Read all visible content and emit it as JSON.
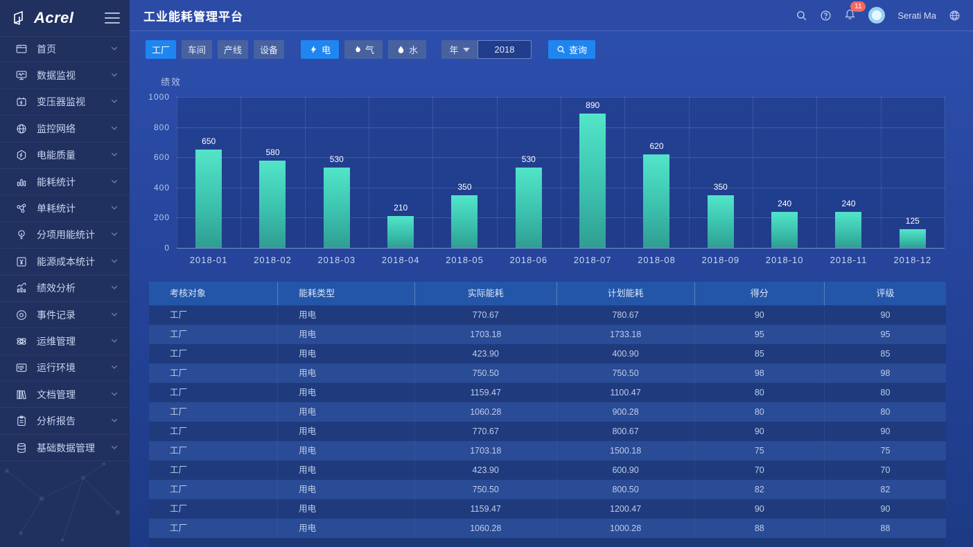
{
  "brand": {
    "logo_text": "Acrel"
  },
  "header": {
    "title": "工业能耗管理平台",
    "notification_count": "11",
    "user_name": "Serati Ma",
    "icons": [
      "search-icon",
      "help-icon",
      "bell-icon",
      "avatar",
      "globe-icon"
    ]
  },
  "sidebar": {
    "items": [
      {
        "label": "首页",
        "icon": "home-icon"
      },
      {
        "label": "数据监视",
        "icon": "data-monitor-icon"
      },
      {
        "label": "变压器监视",
        "icon": "transformer-icon"
      },
      {
        "label": "监控网络",
        "icon": "network-icon"
      },
      {
        "label": "电能质量",
        "icon": "power-quality-icon"
      },
      {
        "label": "能耗统计",
        "icon": "energy-stats-icon"
      },
      {
        "label": "单耗统计",
        "icon": "unit-consumption-icon"
      },
      {
        "label": "分项用能统计",
        "icon": "subentry-energy-icon"
      },
      {
        "label": "能源成本统计",
        "icon": "energy-cost-icon"
      },
      {
        "label": "绩效分析",
        "icon": "performance-icon"
      },
      {
        "label": "事件记录",
        "icon": "event-log-icon"
      },
      {
        "label": "运维管理",
        "icon": "ops-management-icon"
      },
      {
        "label": "运行环境",
        "icon": "environment-icon"
      },
      {
        "label": "文档管理",
        "icon": "document-icon"
      },
      {
        "label": "分析报告",
        "icon": "report-icon"
      },
      {
        "label": "基础数据管理",
        "icon": "base-data-icon"
      }
    ]
  },
  "filters": {
    "scope_buttons": [
      {
        "label": "工厂",
        "active": true
      },
      {
        "label": "车间",
        "active": false
      },
      {
        "label": "产线",
        "active": false
      },
      {
        "label": "设备",
        "active": false
      }
    ],
    "energy_buttons": [
      {
        "label": "电",
        "icon": "lightning-icon",
        "active": true
      },
      {
        "label": "气",
        "icon": "flame-icon",
        "active": false
      },
      {
        "label": "水",
        "icon": "water-drop-icon",
        "active": false
      }
    ],
    "period_label": "年",
    "year_value": "2018",
    "query_label": "查询"
  },
  "chart_data": {
    "type": "bar",
    "title": "绩效",
    "categories": [
      "2018-01",
      "2018-02",
      "2018-03",
      "2018-04",
      "2018-05",
      "2018-06",
      "2018-07",
      "2018-08",
      "2018-09",
      "2018-10",
      "2018-11",
      "2018-12"
    ],
    "values": [
      650,
      580,
      530,
      210,
      350,
      530,
      890,
      620,
      350,
      240,
      240,
      125
    ],
    "xlabel": "",
    "ylabel": "",
    "ylim": [
      0,
      1000
    ],
    "yticks": [
      0,
      200,
      400,
      600,
      800,
      1000
    ],
    "grid": true,
    "legend": false,
    "bar_color_top": "#52e5c9",
    "bar_color_bottom": "#2f9e92"
  },
  "table": {
    "columns": [
      "考核对象",
      "能耗类型",
      "实际能耗",
      "计划能耗",
      "得分",
      "评级"
    ],
    "rows": [
      [
        "工厂",
        "用电",
        "770.67",
        "780.67",
        "90",
        "90"
      ],
      [
        "工厂",
        "用电",
        "1703.18",
        "1733.18",
        "95",
        "95"
      ],
      [
        "工厂",
        "用电",
        "423.90",
        "400.90",
        "85",
        "85"
      ],
      [
        "工厂",
        "用电",
        "750.50",
        "750.50",
        "98",
        "98"
      ],
      [
        "工厂",
        "用电",
        "1159.47",
        "1100.47",
        "80",
        "80"
      ],
      [
        "工厂",
        "用电",
        "1060.28",
        "900.28",
        "80",
        "80"
      ],
      [
        "工厂",
        "用电",
        "770.67",
        "800.67",
        "90",
        "90"
      ],
      [
        "工厂",
        "用电",
        "1703.18",
        "1500.18",
        "75",
        "75"
      ],
      [
        "工厂",
        "用电",
        "423.90",
        "600.90",
        "70",
        "70"
      ],
      [
        "工厂",
        "用电",
        "750.50",
        "800.50",
        "82",
        "82"
      ],
      [
        "工厂",
        "用电",
        "1159.47",
        "1200.47",
        "90",
        "90"
      ],
      [
        "工厂",
        "用电",
        "1060.28",
        "1000.28",
        "88",
        "88"
      ]
    ]
  },
  "colors": {
    "accent_blue": "#1f86f0",
    "sidebar_bg": "#20305f",
    "header_bg": "#2b4ba6",
    "table_header_bg": "#2356a9",
    "row_dark": "#1f3b7e",
    "row_light": "#2a4b95",
    "badge_red": "#f5685f",
    "bar_teal": "#3cc2ae"
  }
}
